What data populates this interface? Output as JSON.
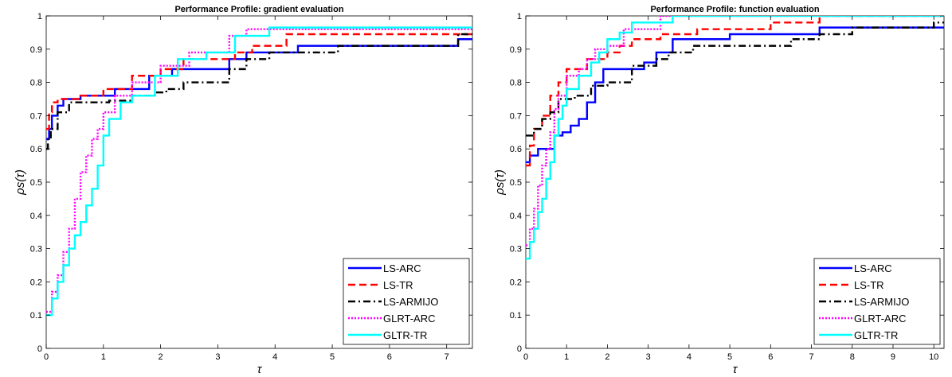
{
  "chart_data": [
    {
      "type": "line",
      "title": "Performance Profile: gradient evaluation",
      "xlabel": "τ",
      "ylabel": "ρs(τ)",
      "xlim": [
        0,
        7.45
      ],
      "ylim": [
        0,
        1
      ],
      "xticks": [
        "0",
        "1",
        "2",
        "3",
        "4",
        "5",
        "6",
        "7"
      ],
      "yticks": [
        "0",
        "0.1",
        "0.2",
        "0.3",
        "0.4",
        "0.5",
        "0.6",
        "0.7",
        "0.8",
        "0.9",
        "1"
      ],
      "grid": false,
      "legend_position": "bottom-right",
      "series": [
        {
          "name": "LS-ARC",
          "color": "#0000ff",
          "style": "solid",
          "step": true,
          "x": [
            0,
            0.05,
            0.1,
            0.2,
            0.3,
            0.6,
            1.2,
            1.8,
            2.2,
            3.2,
            3.5,
            3.8,
            4.4,
            7.2,
            7.45
          ],
          "y": [
            0.63,
            0.66,
            0.7,
            0.73,
            0.75,
            0.76,
            0.78,
            0.82,
            0.84,
            0.87,
            0.89,
            0.89,
            0.91,
            0.93,
            0.93
          ]
        },
        {
          "name": "LS-TR",
          "color": "#ff0000",
          "style": "dashed",
          "step": true,
          "x": [
            0,
            0.05,
            0.1,
            0.2,
            0.3,
            0.6,
            1.0,
            1.5,
            2.0,
            2.4,
            3.3,
            3.6,
            4.2,
            7.45
          ],
          "y": [
            0.66,
            0.71,
            0.74,
            0.75,
            0.75,
            0.76,
            0.78,
            0.82,
            0.84,
            0.87,
            0.89,
            0.91,
            0.945,
            0.945
          ]
        },
        {
          "name": "LS-ARMIJO",
          "color": "#000000",
          "style": "dashdot",
          "step": true,
          "x": [
            0,
            0.03,
            0.08,
            0.2,
            0.4,
            1.1,
            1.5,
            1.9,
            2.1,
            2.4,
            3.2,
            3.5,
            3.9,
            5.1,
            7.2,
            7.45
          ],
          "y": [
            0.6,
            0.63,
            0.66,
            0.71,
            0.74,
            0.745,
            0.76,
            0.77,
            0.78,
            0.8,
            0.84,
            0.87,
            0.89,
            0.91,
            0.945,
            0.945
          ]
        },
        {
          "name": "GLRT-ARC",
          "color": "#ff00ff",
          "style": "dotted",
          "step": true,
          "x": [
            0,
            0.1,
            0.2,
            0.3,
            0.4,
            0.5,
            0.6,
            0.7,
            0.8,
            0.9,
            1.0,
            1.2,
            1.5,
            2.0,
            2.5,
            3.2,
            3.5,
            7.45
          ],
          "y": [
            0.11,
            0.17,
            0.22,
            0.29,
            0.36,
            0.45,
            0.53,
            0.58,
            0.63,
            0.66,
            0.71,
            0.76,
            0.8,
            0.85,
            0.89,
            0.94,
            0.96,
            0.96
          ]
        },
        {
          "name": "GLTR-TR",
          "color": "#00ffff",
          "style": "solid",
          "step": true,
          "x": [
            0,
            0.1,
            0.2,
            0.3,
            0.4,
            0.5,
            0.6,
            0.7,
            0.8,
            0.9,
            1.0,
            1.1,
            1.3,
            1.5,
            1.9,
            2.3,
            2.8,
            3.3,
            3.9,
            7.45
          ],
          "y": [
            0.1,
            0.15,
            0.2,
            0.25,
            0.3,
            0.34,
            0.38,
            0.43,
            0.48,
            0.55,
            0.64,
            0.69,
            0.74,
            0.76,
            0.82,
            0.87,
            0.89,
            0.94,
            0.965,
            0.965
          ]
        }
      ]
    },
    {
      "type": "line",
      "title": "Performance Profile: function evaluation",
      "xlabel": "τ",
      "ylabel": "ρs(τ)",
      "xlim": [
        0,
        10.25
      ],
      "ylim": [
        0,
        1
      ],
      "xticks": [
        "0",
        "1",
        "2",
        "3",
        "4",
        "5",
        "6",
        "7",
        "8",
        "9",
        "10"
      ],
      "yticks": [
        "0",
        "0.1",
        "0.2",
        "0.3",
        "0.4",
        "0.5",
        "0.6",
        "0.7",
        "0.8",
        "0.9",
        "1"
      ],
      "grid": false,
      "legend_position": "bottom-right",
      "series": [
        {
          "name": "LS-ARC",
          "color": "#0000ff",
          "style": "solid",
          "step": true,
          "x": [
            0,
            0.1,
            0.3,
            0.7,
            0.9,
            1.1,
            1.3,
            1.5,
            1.7,
            1.9,
            2.9,
            3.2,
            3.6,
            5.0,
            7.2,
            10.25
          ],
          "y": [
            0.56,
            0.58,
            0.6,
            0.64,
            0.65,
            0.67,
            0.69,
            0.74,
            0.8,
            0.84,
            0.86,
            0.89,
            0.93,
            0.945,
            0.965,
            0.965
          ]
        },
        {
          "name": "LS-TR",
          "color": "#ff0000",
          "style": "dashed",
          "step": true,
          "x": [
            0,
            0.1,
            0.2,
            0.4,
            0.6,
            0.8,
            1.0,
            1.5,
            2.0,
            2.3,
            2.6,
            3.3,
            4.2,
            6.0,
            7.2,
            10.25
          ],
          "y": [
            0.55,
            0.61,
            0.66,
            0.7,
            0.76,
            0.8,
            0.84,
            0.87,
            0.89,
            0.91,
            0.93,
            0.945,
            0.96,
            0.98,
            1.0,
            1.0
          ]
        },
        {
          "name": "LS-ARMIJO",
          "color": "#000000",
          "style": "dashdot",
          "step": true,
          "x": [
            0,
            0.2,
            0.4,
            0.6,
            0.8,
            1.2,
            1.6,
            2.0,
            2.6,
            3.2,
            3.5,
            4.1,
            6.5,
            7.2,
            8.0,
            10.0,
            10.25
          ],
          "y": [
            0.64,
            0.66,
            0.69,
            0.71,
            0.75,
            0.76,
            0.79,
            0.8,
            0.85,
            0.87,
            0.89,
            0.91,
            0.93,
            0.945,
            0.965,
            0.98,
            0.98
          ]
        },
        {
          "name": "GLRT-ARC",
          "color": "#ff00ff",
          "style": "dotted",
          "step": true,
          "x": [
            0,
            0.1,
            0.2,
            0.3,
            0.4,
            0.5,
            0.6,
            0.7,
            0.8,
            1.0,
            1.3,
            1.5,
            1.7,
            2.0,
            2.4,
            3.3,
            10.25
          ],
          "y": [
            0.31,
            0.36,
            0.42,
            0.49,
            0.55,
            0.6,
            0.65,
            0.72,
            0.76,
            0.82,
            0.84,
            0.87,
            0.9,
            0.91,
            0.96,
            1.0,
            1.0
          ]
        },
        {
          "name": "GLTR-TR",
          "color": "#00ffff",
          "style": "solid",
          "step": true,
          "x": [
            0,
            0.1,
            0.2,
            0.3,
            0.4,
            0.5,
            0.6,
            0.7,
            0.8,
            0.9,
            1.0,
            1.3,
            1.6,
            1.8,
            2.0,
            2.3,
            2.6,
            3.6,
            10.25
          ],
          "y": [
            0.27,
            0.32,
            0.36,
            0.41,
            0.45,
            0.51,
            0.56,
            0.64,
            0.69,
            0.73,
            0.78,
            0.82,
            0.86,
            0.89,
            0.93,
            0.95,
            0.98,
            1.0,
            1.0
          ]
        }
      ]
    }
  ]
}
